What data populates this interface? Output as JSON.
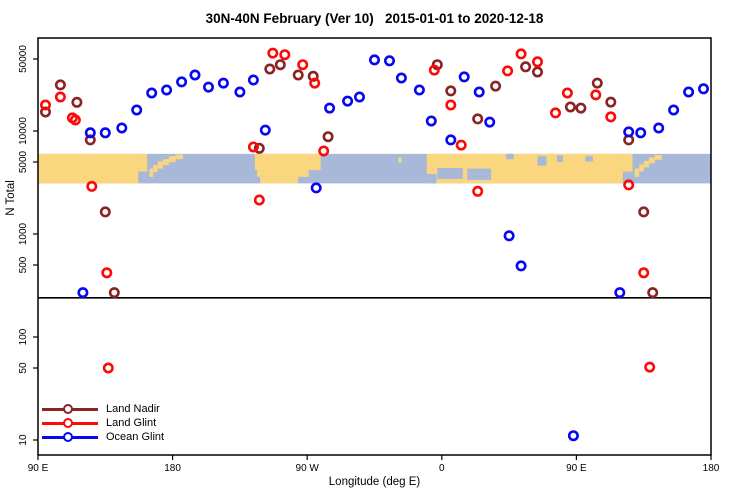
{
  "chart_data": {
    "type": "scatter",
    "title": "30N-40N February (Ver 10)   2015-01-01 to 2020-12-18",
    "xlabel": "Longitude (deg E)",
    "ylabel": "N Total",
    "x_axis": {
      "range": [
        90,
        540
      ],
      "ticks": [
        {
          "value": 90,
          "label": "90 E"
        },
        {
          "value": 180,
          "label": "180"
        },
        {
          "value": 270,
          "label": "90 W"
        },
        {
          "value": 360,
          "label": "0"
        },
        {
          "value": 450,
          "label": "90 E"
        },
        {
          "value": 540,
          "label": "180"
        }
      ]
    },
    "y_axis": {
      "scale": "log",
      "range": [
        7,
        80000
      ],
      "ticks": [
        50000,
        10000,
        5000,
        1000,
        500,
        100,
        50,
        10
      ]
    },
    "reference_line": {
      "value": 240
    },
    "map_band": {
      "description": "30N-40N world coastline strip drawn across the plot",
      "value_top": 6000,
      "value_bottom": 3100,
      "land_color": "#FAD67E",
      "ocean_color": "#A8B8D8",
      "land_rects": [
        [
          90,
          157,
          0,
          1
        ],
        [
          157,
          163,
          0,
          0.6
        ],
        [
          164.5,
          167,
          0.5,
          0.78
        ],
        [
          167,
          170,
          0.38,
          0.62
        ],
        [
          170,
          173.5,
          0.26,
          0.5
        ],
        [
          173.5,
          177.5,
          0.18,
          0.38
        ],
        [
          177.5,
          182,
          0.08,
          0.28
        ],
        [
          182,
          187,
          0.02,
          0.18
        ],
        [
          235,
          279,
          0,
          0.55
        ],
        [
          236.5,
          271,
          0.55,
          0.78
        ],
        [
          238.5,
          264,
          0.78,
          1
        ],
        [
          331,
          333,
          0.12,
          0.3
        ],
        [
          350,
          481,
          0,
          1
        ],
        [
          481,
          487.5,
          0,
          0.6
        ],
        [
          489,
          492,
          0.5,
          0.78
        ],
        [
          492,
          495,
          0.36,
          0.6
        ],
        [
          495,
          498.5,
          0.24,
          0.46
        ],
        [
          498.5,
          502.5,
          0.12,
          0.32
        ],
        [
          502.5,
          507,
          0.04,
          0.2
        ]
      ],
      "ocean_patches": [
        [
          350,
          356.5,
          0.68,
          1
        ],
        [
          357,
          374,
          0.48,
          0.85
        ],
        [
          377,
          393,
          0.5,
          0.88
        ],
        [
          403,
          408,
          0,
          0.18
        ],
        [
          424,
          430,
          0.08,
          0.4
        ],
        [
          437,
          441,
          0.05,
          0.28
        ],
        [
          456,
          461,
          0.08,
          0.26
        ]
      ]
    },
    "legend": {
      "position": "bottom-left"
    },
    "series": [
      {
        "name": "Land Nadir",
        "color": "#8B2323",
        "points": [
          [
            95,
            15300
          ],
          [
            105,
            28000
          ],
          [
            116,
            19000
          ],
          [
            125,
            8200
          ],
          [
            135,
            1640
          ],
          [
            141,
            270
          ],
          [
            238,
            6800
          ],
          [
            245,
            40000
          ],
          [
            252,
            44000
          ],
          [
            264,
            35000
          ],
          [
            274,
            34000
          ],
          [
            284,
            8800
          ],
          [
            357,
            44000
          ],
          [
            366,
            24500
          ],
          [
            384,
            13100
          ],
          [
            396,
            27300
          ],
          [
            416,
            42000
          ],
          [
            424,
            37400
          ],
          [
            446,
            17100
          ],
          [
            453,
            16700
          ],
          [
            464,
            29200
          ],
          [
            473,
            19100
          ],
          [
            485,
            8200
          ],
          [
            495,
            1640
          ],
          [
            501,
            270
          ]
        ]
      },
      {
        "name": "Land Glint",
        "color": "#FB0B07",
        "points": [
          [
            95,
            17900
          ],
          [
            105,
            21400
          ],
          [
            113,
            13400
          ],
          [
            115,
            12800
          ],
          [
            126,
            2900
          ],
          [
            136,
            420
          ],
          [
            137,
            50
          ],
          [
            234,
            7000
          ],
          [
            238,
            2140
          ],
          [
            247,
            57000
          ],
          [
            255,
            55000
          ],
          [
            267,
            44000
          ],
          [
            275,
            29200
          ],
          [
            281,
            6400
          ],
          [
            355,
            39000
          ],
          [
            366,
            17900
          ],
          [
            373,
            7300
          ],
          [
            384,
            2600
          ],
          [
            404,
            38300
          ],
          [
            413,
            56000
          ],
          [
            424,
            47000
          ],
          [
            436,
            15000
          ],
          [
            444,
            23400
          ],
          [
            463,
            22400
          ],
          [
            473,
            13700
          ],
          [
            485,
            3000
          ],
          [
            495,
            420
          ],
          [
            499,
            51
          ]
        ]
      },
      {
        "name": "Ocean Glint",
        "color": "#0707F0",
        "points": [
          [
            120,
            270
          ],
          [
            125,
            9600
          ],
          [
            135,
            9600
          ],
          [
            146,
            10700
          ],
          [
            156,
            16000
          ],
          [
            166,
            23400
          ],
          [
            176,
            25000
          ],
          [
            186,
            30000
          ],
          [
            195,
            35000
          ],
          [
            204,
            26700
          ],
          [
            214,
            29200
          ],
          [
            225,
            23900
          ],
          [
            234,
            31300
          ],
          [
            242,
            10200
          ],
          [
            276,
            2800
          ],
          [
            285,
            16700
          ],
          [
            297,
            19500
          ],
          [
            305,
            21400
          ],
          [
            315,
            49000
          ],
          [
            325,
            48000
          ],
          [
            333,
            32700
          ],
          [
            345,
            25000
          ],
          [
            353,
            12500
          ],
          [
            366,
            8200
          ],
          [
            375,
            33500
          ],
          [
            385,
            23900
          ],
          [
            392,
            12200
          ],
          [
            405,
            960
          ],
          [
            413,
            490
          ],
          [
            448,
            11
          ],
          [
            479,
            270
          ],
          [
            485,
            9800
          ],
          [
            493,
            9600
          ],
          [
            505,
            10700
          ],
          [
            515,
            16000
          ],
          [
            525,
            23900
          ],
          [
            535,
            25700
          ]
        ]
      }
    ]
  }
}
